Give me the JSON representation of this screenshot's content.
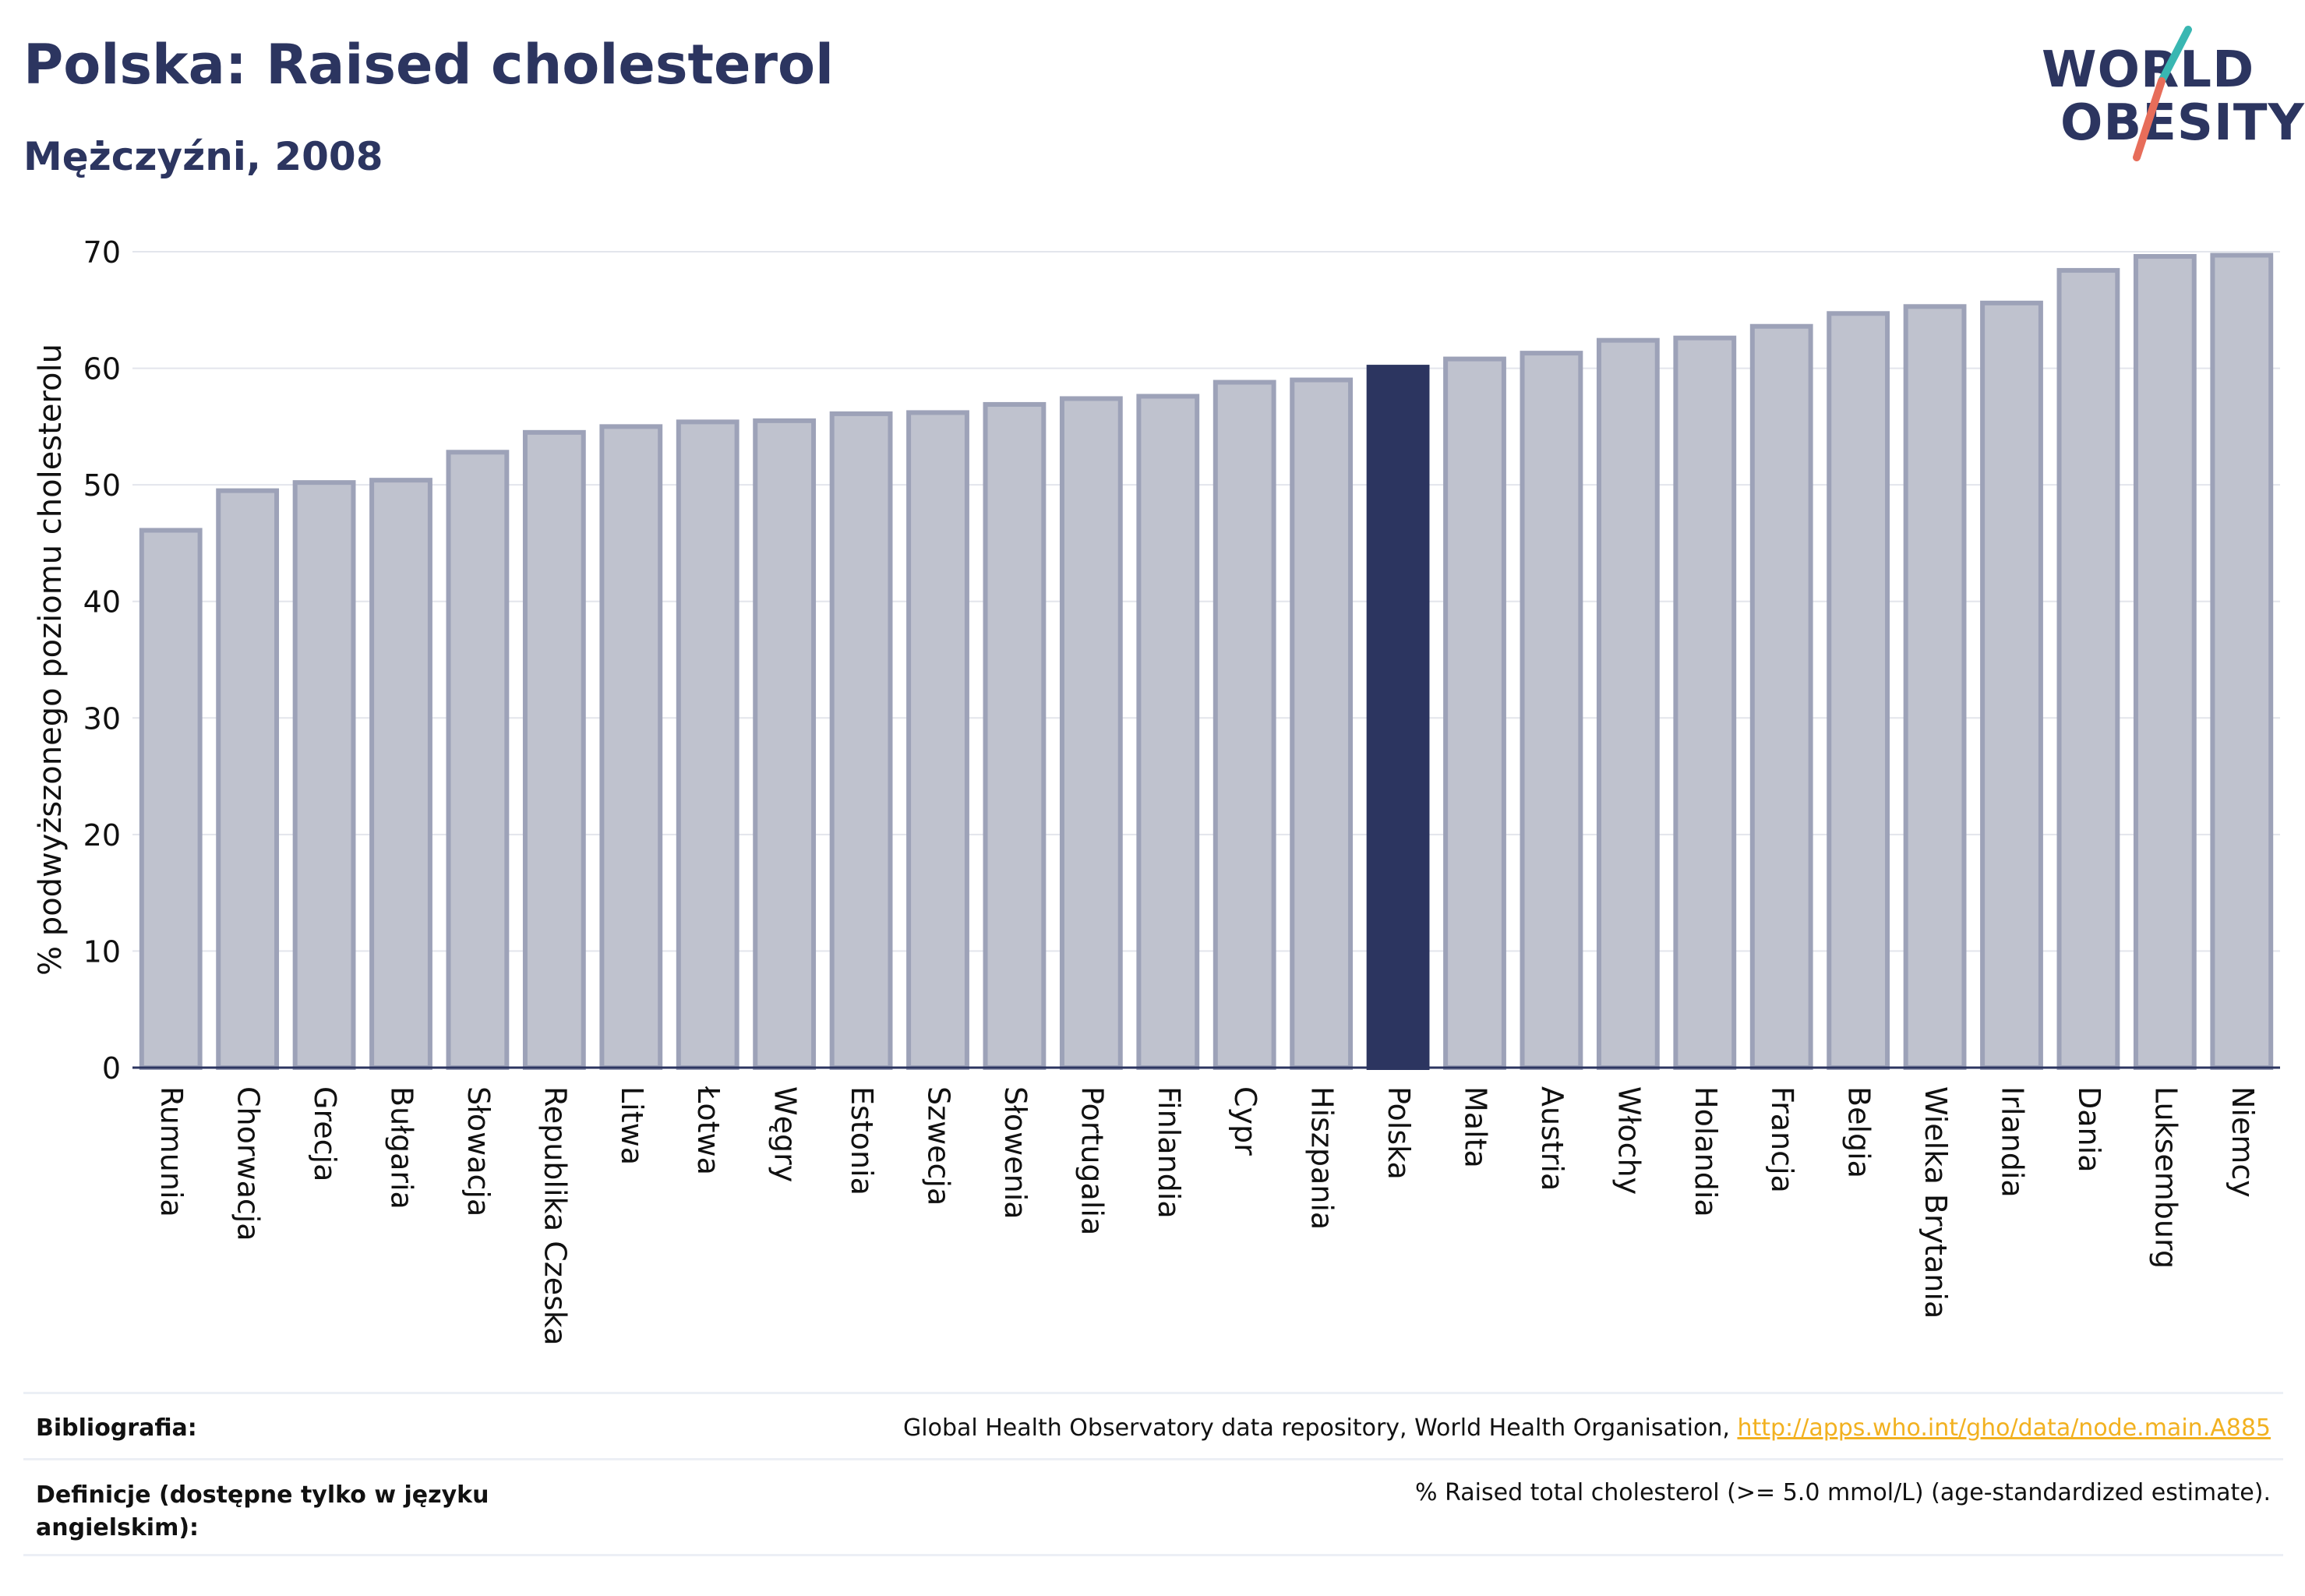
{
  "header": {
    "title": "Polska: Raised cholesterol",
    "subtitle": "Mężczyźni, 2008"
  },
  "logo": {
    "line1": "WORLD",
    "line2": "OBESITY",
    "accent_teal": "#39b7b2",
    "accent_coral": "#e76d5a"
  },
  "colors": {
    "bar": "#bfc2ce",
    "bar_border": "#9da2b8",
    "highlight": "#2c3560",
    "grid": "#e3e5ec",
    "axis": "#2c3560"
  },
  "chart_data": {
    "type": "bar",
    "title": "Polska: Raised cholesterol",
    "subtitle": "Mężczyźni, 2008",
    "xlabel": "",
    "ylabel": "% podwyższonego poziomu cholesterolu",
    "ylim": [
      0,
      70
    ],
    "yticks": [
      0,
      10,
      20,
      30,
      40,
      50,
      60,
      70
    ],
    "grid": true,
    "highlight": "Polska",
    "categories": [
      "Rumunia",
      "Chorwacja",
      "Grecja",
      "Bułgaria",
      "Słowacja",
      "Republika Czeska",
      "Litwa",
      "Łotwa",
      "Węgry",
      "Estonia",
      "Szwecja",
      "Słowenia",
      "Portugalia",
      "Finlandia",
      "Cypr",
      "Hiszpania",
      "Polska",
      "Malta",
      "Austria",
      "Włochy",
      "Holandia",
      "Francja",
      "Belgia",
      "Wielka Brytania",
      "Irlandia",
      "Dania",
      "Luksemburg",
      "Niemcy"
    ],
    "values": [
      46.1,
      49.5,
      50.2,
      50.4,
      52.8,
      54.5,
      55.0,
      55.4,
      55.5,
      56.1,
      56.2,
      56.9,
      57.4,
      57.6,
      58.8,
      59.0,
      60.1,
      60.8,
      61.3,
      62.4,
      62.6,
      63.6,
      64.7,
      65.3,
      65.6,
      68.4,
      69.6,
      69.7
    ]
  },
  "footer": {
    "bibliography_label": "Bibliografia:",
    "bibliography_text": "Global Health Observatory data repository, World Health Organisation, ",
    "bibliography_link": "http://apps.who.int/gho/data/node.main.A885",
    "definition_label": "Definicje (dostępne tylko w języku angielskim):",
    "definition_text": "% Raised total cholesterol (>= 5.0 mmol/L) (age-standardized estimate)."
  }
}
